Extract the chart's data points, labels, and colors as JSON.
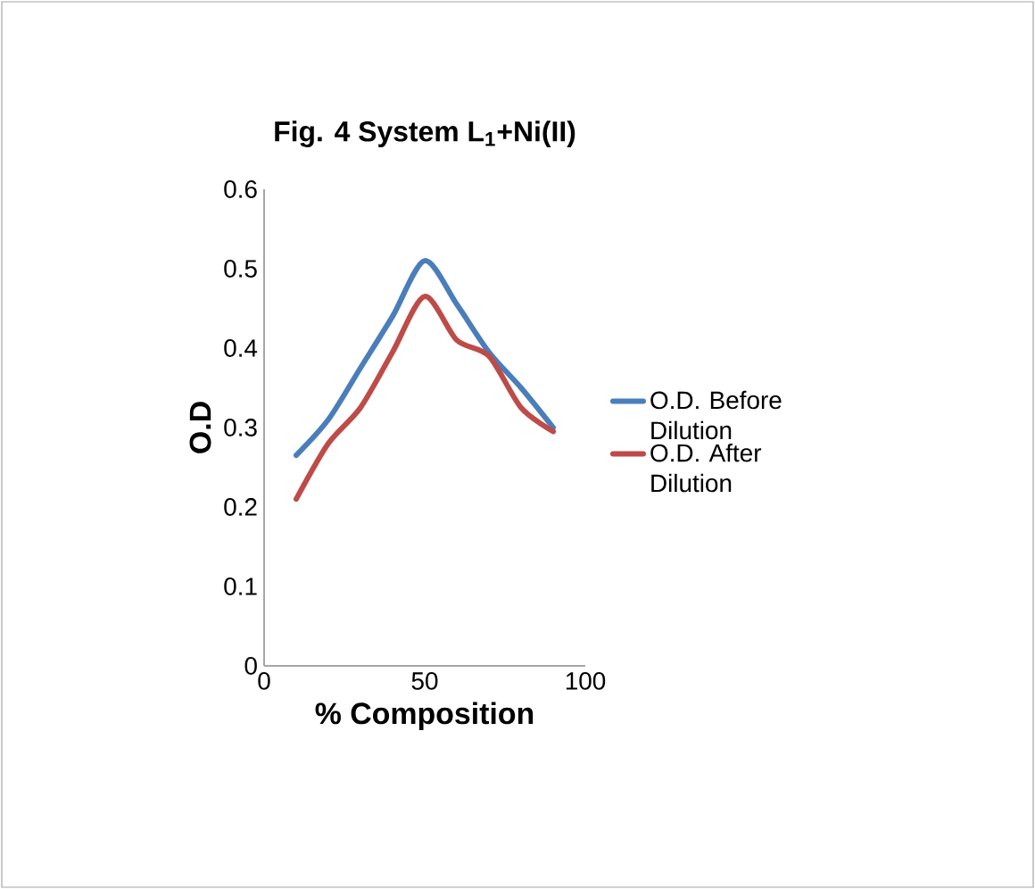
{
  "chart_data": {
    "type": "line",
    "title": "Fig. 4 System L$_{1}$+Ni(II)",
    "xlabel": "% Composition",
    "ylabel": "O.D",
    "x": [
      10,
      20,
      30,
      40,
      50,
      60,
      70,
      80,
      90
    ],
    "series": [
      {
        "name": "O.D. Before Dilution",
        "color": "#4a7ebb",
        "values": [
          0.265,
          0.31,
          0.375,
          0.44,
          0.51,
          0.455,
          0.395,
          0.35,
          0.3
        ]
      },
      {
        "name": "O.D. After Dilution",
        "color": "#be4b48",
        "values": [
          0.21,
          0.28,
          0.325,
          0.395,
          0.465,
          0.41,
          0.39,
          0.325,
          0.295
        ]
      }
    ],
    "xlim": [
      0,
      100
    ],
    "xticks": [
      0,
      50,
      100
    ],
    "ylim": [
      0,
      0.6
    ],
    "yticks": [
      0,
      0.1,
      0.2,
      0.3,
      0.4,
      0.5,
      0.6
    ],
    "grid": false,
    "legend": "right",
    "marker": "none",
    "line_style": "solid"
  }
}
